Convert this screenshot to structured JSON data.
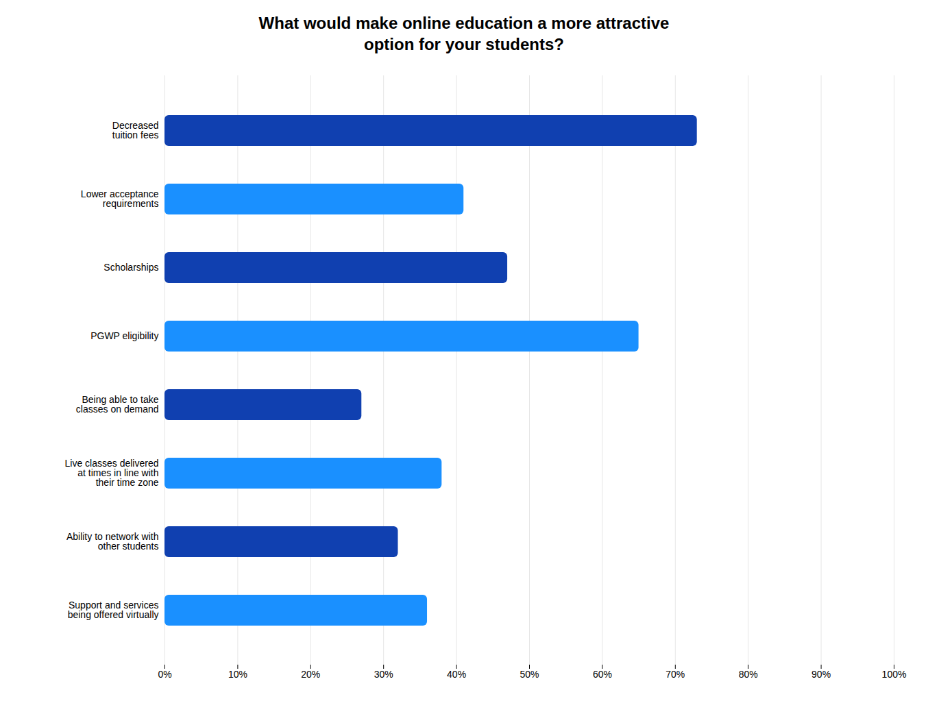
{
  "chart_data": {
    "type": "bar",
    "orientation": "horizontal",
    "title": "What would make online education a more attractive\noption for your students?",
    "categories": [
      "Support and services\nbeing offered virtually",
      "Ability to network with\nother students",
      "Live classes delivered\nat times in line with\ntheir time zone",
      "Being able to take\nclasses on demand",
      "PGWP eligibility",
      "Scholarships",
      "Lower acceptance\nrequirements",
      "Decreased\ntuition fees"
    ],
    "values": [
      36,
      32,
      38,
      27,
      65,
      47,
      41,
      73
    ],
    "colors": [
      "#1a90ff",
      "#1040b0",
      "#1a90ff",
      "#1040b0",
      "#1a90ff",
      "#1040b0",
      "#1a90ff",
      "#1040b0"
    ],
    "xlim": [
      0,
      100
    ],
    "xticks": [
      {
        "value": 0,
        "label": "0%"
      },
      {
        "value": 10,
        "label": "10%"
      },
      {
        "value": 20,
        "label": "20%"
      },
      {
        "value": 30,
        "label": "30%"
      },
      {
        "value": 40,
        "label": "40%"
      },
      {
        "value": 50,
        "label": "50%"
      },
      {
        "value": 60,
        "label": "60%"
      },
      {
        "value": 70,
        "label": "70%"
      },
      {
        "value": 80,
        "label": "80%"
      },
      {
        "value": 90,
        "label": "90%"
      },
      {
        "value": 100,
        "label": "100%"
      }
    ],
    "grid": true
  }
}
